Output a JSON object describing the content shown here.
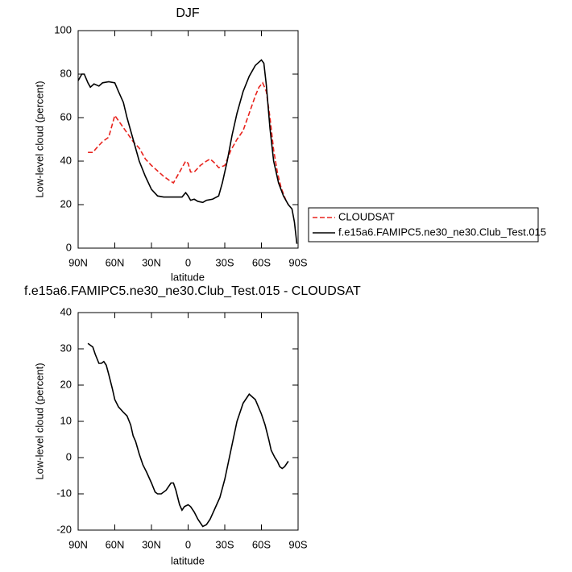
{
  "chart_data": [
    {
      "type": "line",
      "title": "DJF",
      "xlabel": "latitude",
      "ylabel": "Low-level cloud (percent)",
      "xlim": [
        90,
        -90
      ],
      "ylim": [
        0,
        100
      ],
      "xticks": [
        {
          "value": 90,
          "label": "90N"
        },
        {
          "value": 60,
          "label": "60N"
        },
        {
          "value": 30,
          "label": "30N"
        },
        0,
        {
          "value": -30,
          "label": "30S"
        },
        {
          "value": -60,
          "label": "60S"
        },
        {
          "value": -90,
          "label": "90S"
        }
      ],
      "yticks": [
        0,
        20,
        40,
        60,
        80,
        100
      ],
      "legend": "right",
      "series": [
        {
          "name": "CLOUDSAT",
          "color": "#e8231d",
          "dashed": true,
          "x": [
            82,
            78,
            75,
            70,
            65,
            60,
            55,
            50,
            45,
            40,
            35,
            30,
            25,
            20,
            15,
            12,
            8,
            5,
            2,
            0,
            -2,
            -5,
            -10,
            -15,
            -18,
            -22,
            -25,
            -30,
            -35,
            -40,
            -45,
            -50,
            -55,
            -58,
            -61,
            -64,
            -67,
            -70,
            -73,
            -76,
            -80,
            -82
          ],
          "values": [
            44,
            44,
            46,
            49,
            51,
            61,
            57,
            53,
            49,
            46,
            41,
            38,
            35.5,
            33,
            31,
            30,
            34,
            37,
            40,
            39,
            35,
            35,
            38,
            40,
            41,
            39,
            37,
            38,
            45,
            50,
            54,
            62,
            70,
            74,
            76,
            72,
            60,
            45,
            35,
            28,
            22,
            20
          ]
        },
        {
          "name": "f.e15a6.FAMIPC5.ne30_ne30.Club_Test.015",
          "color": "#000000",
          "dashed": false,
          "x": [
            90,
            87,
            85,
            82,
            80,
            77,
            73,
            70,
            65,
            60,
            57,
            53,
            50,
            45,
            40,
            35,
            30,
            25,
            20,
            15,
            10,
            5,
            2,
            0,
            -2,
            -5,
            -8,
            -12,
            -15,
            -20,
            -25,
            -28,
            -32,
            -36,
            -40,
            -45,
            -50,
            -55,
            -60,
            -62,
            -64,
            -67,
            -70,
            -74,
            -78,
            -82,
            -85,
            -87,
            -89
          ],
          "values": [
            77,
            80,
            80,
            76,
            74,
            75.5,
            74.5,
            76,
            76.5,
            76,
            72,
            67,
            60,
            50,
            40,
            33,
            27,
            24,
            23.5,
            23.5,
            23.5,
            23.5,
            25.5,
            24,
            22,
            22.5,
            21.5,
            21,
            22,
            22.5,
            24,
            30,
            40,
            52,
            62,
            72,
            79,
            84,
            86.5,
            85,
            75,
            55,
            40,
            30,
            24,
            20,
            18,
            12,
            2
          ]
        }
      ]
    },
    {
      "type": "line",
      "title": "f.e15a6.FAMIPC5.ne30_ne30.Club_Test.015 - CLOUDSAT",
      "xlabel": "latitude",
      "ylabel": "Low-level cloud (percent)",
      "xlim": [
        90,
        -90
      ],
      "ylim": [
        -20,
        40
      ],
      "xticks": [
        {
          "value": 90,
          "label": "90N"
        },
        {
          "value": 60,
          "label": "60N"
        },
        {
          "value": 30,
          "label": "30N"
        },
        0,
        {
          "value": -30,
          "label": "30S"
        },
        {
          "value": -60,
          "label": "60S"
        },
        {
          "value": -90,
          "label": "90S"
        }
      ],
      "yticks": [
        -20,
        -10,
        0,
        10,
        20,
        30,
        40
      ],
      "series": [
        {
          "color": "#000000",
          "dashed": false,
          "x": [
            82,
            80,
            78,
            76,
            73,
            71,
            69,
            67,
            65,
            62,
            60,
            57,
            53,
            50,
            47,
            45,
            43,
            40,
            37,
            34,
            30,
            27,
            25,
            22,
            18,
            14,
            12,
            10,
            7,
            5,
            3,
            0,
            -2,
            -5,
            -8,
            -12,
            -15,
            -18,
            -22,
            -26,
            -30,
            -35,
            -40,
            -45,
            -50,
            -55,
            -60,
            -63,
            -66,
            -68,
            -71,
            -73,
            -75,
            -77,
            -79,
            -81,
            -82
          ],
          "values": [
            31.5,
            31,
            30.5,
            28.5,
            26,
            26,
            26.5,
            25.5,
            23,
            19,
            16,
            14,
            12.5,
            11.5,
            9,
            6,
            4.5,
            1,
            -2,
            -4,
            -7,
            -9.5,
            -10,
            -10,
            -9,
            -7,
            -7,
            -9,
            -13,
            -14.5,
            -13.5,
            -13,
            -13.5,
            -15,
            -17,
            -19,
            -18.5,
            -17,
            -14,
            -11,
            -6,
            2,
            10,
            15,
            17.5,
            16,
            12,
            9,
            5,
            2,
            0,
            -1,
            -2.5,
            -3,
            -2.5,
            -1.5,
            -1
          ]
        }
      ]
    }
  ]
}
